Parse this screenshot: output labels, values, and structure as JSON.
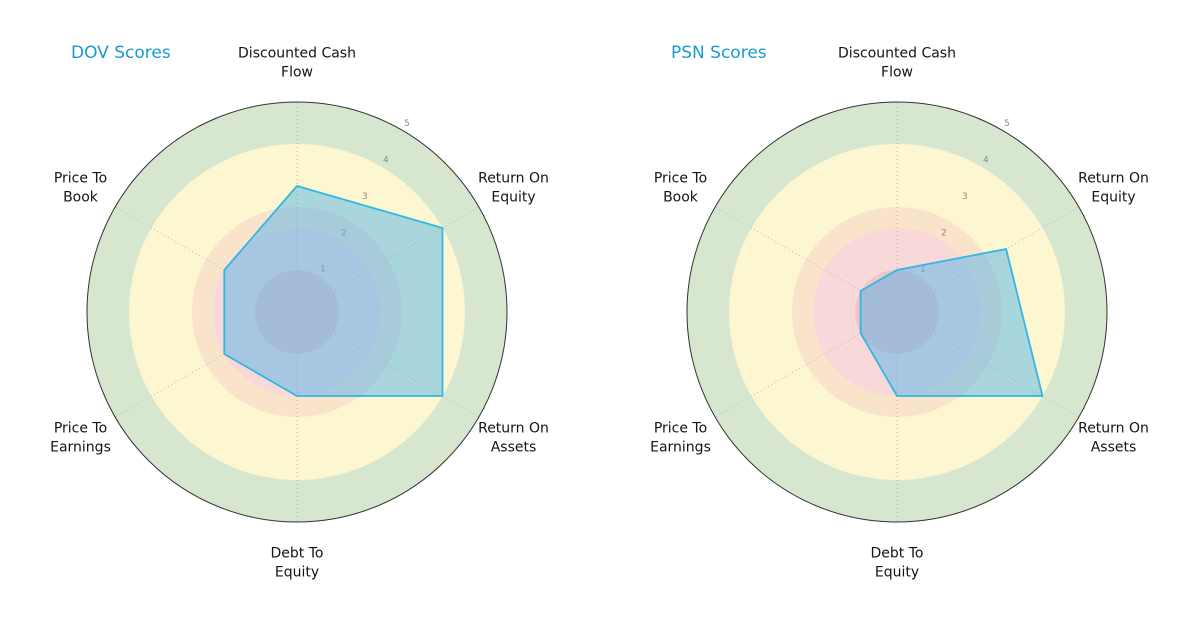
{
  "page": {
    "background": "#ffffff"
  },
  "style": {
    "title_color": "#189ad3",
    "axis_label_color": "#141414",
    "tick_label_color": "#8a8a8a",
    "outer_ring_color": "#333333",
    "spoke_color": "#b3b3b3",
    "polygon_fill": "rgba(86,180,233,0.5)",
    "polygon_stroke": "#2fb8e6",
    "bands": [
      {
        "to": 5,
        "color": "#d7e7cf",
        "label": "green"
      },
      {
        "to": 4,
        "color": "#fcf7d0",
        "label": "yellow"
      },
      {
        "to": 2.5,
        "color": "#fae3cb",
        "label": "peach"
      },
      {
        "to": 2,
        "color": "#f8d8d8",
        "label": "pink"
      },
      {
        "to": 1,
        "color": "#f2c4c4",
        "label": "rose"
      }
    ]
  },
  "chart_data": [
    {
      "type": "radar",
      "title": "DOV Scores",
      "categories": [
        "Discounted Cash Flow",
        "Return On Equity",
        "Return On Assets",
        "Debt To Equity",
        "Price To Earnings",
        "Price To Book"
      ],
      "category_lines": [
        [
          "Discounted Cash",
          "Flow"
        ],
        [
          "Return On",
          "Equity"
        ],
        [
          "Return On",
          "Assets"
        ],
        [
          "Debt To",
          "Equity"
        ],
        [
          "Price To",
          "Earnings"
        ],
        [
          "Price To",
          "Book"
        ]
      ],
      "values": [
        3,
        4,
        4,
        2,
        2,
        2
      ],
      "rlim": [
        0,
        5
      ],
      "rticks": [
        1,
        2,
        3,
        4,
        5
      ],
      "legend": "none",
      "grid": "radial-dotted"
    },
    {
      "type": "radar",
      "title": "PSN Scores",
      "categories": [
        "Discounted Cash Flow",
        "Return On Equity",
        "Return On Assets",
        "Debt To Equity",
        "Price To Earnings",
        "Price To Book"
      ],
      "category_lines": [
        [
          "Discounted Cash",
          "Flow"
        ],
        [
          "Return On",
          "Equity"
        ],
        [
          "Return On",
          "Assets"
        ],
        [
          "Debt To",
          "Equity"
        ],
        [
          "Price To",
          "Earnings"
        ],
        [
          "Price To",
          "Book"
        ]
      ],
      "values": [
        1,
        3,
        4,
        2,
        1,
        1
      ],
      "rlim": [
        0,
        5
      ],
      "rticks": [
        1,
        2,
        3,
        4,
        5
      ],
      "legend": "none",
      "grid": "radial-dotted"
    }
  ]
}
